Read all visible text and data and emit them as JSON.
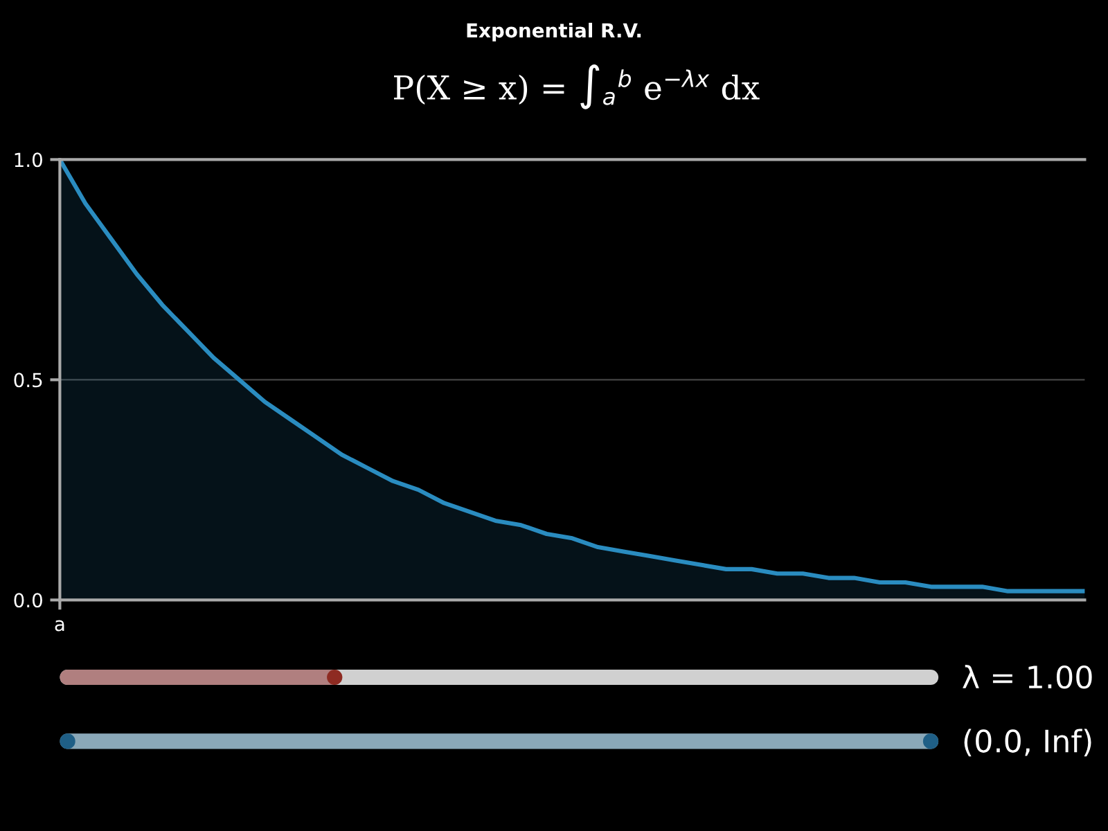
{
  "chart_data": {
    "type": "area",
    "title": "Exponential R.V.",
    "subtitle": "P(X ≥ x) = ∫$_{a}$$^{b}$ e$^{−λx}$ dx",
    "categories": [
      "a",
      null,
      null,
      null,
      null,
      null,
      null,
      null,
      null,
      null,
      null,
      null,
      null,
      null,
      null,
      null,
      null,
      null,
      null,
      null,
      null,
      null,
      null,
      null,
      null,
      null,
      null,
      null,
      null,
      null,
      null,
      null,
      null,
      null,
      null,
      null,
      null,
      null,
      null,
      null,
      null
    ],
    "series": [
      {
        "color": "#2a8cc0",
        "values": [
          1.0,
          0.9,
          0.82,
          0.74,
          0.67,
          0.61,
          0.55,
          0.5,
          0.45,
          0.41,
          0.37,
          0.33,
          0.3,
          0.27,
          0.25,
          0.22,
          0.2,
          0.18,
          0.17,
          0.15,
          0.14,
          0.12,
          0.11,
          0.1,
          0.09,
          0.08,
          0.07,
          0.07,
          0.06,
          0.06,
          0.05,
          0.05,
          0.04,
          0.04,
          0.03,
          0.03,
          0.03,
          0.02,
          0.02,
          0.02,
          0.02
        ]
      }
    ],
    "ylim": [
      0,
      1
    ],
    "yticks": [
      {
        "value": 0,
        "label": "0.0"
      },
      {
        "value": 0.5,
        "label": "0.5"
      },
      {
        "value": 1,
        "label": "1.0"
      }
    ],
    "grid": "y",
    "annotations": [
      "λ = 1.00",
      "(0.0, Inf)"
    ]
  }
}
